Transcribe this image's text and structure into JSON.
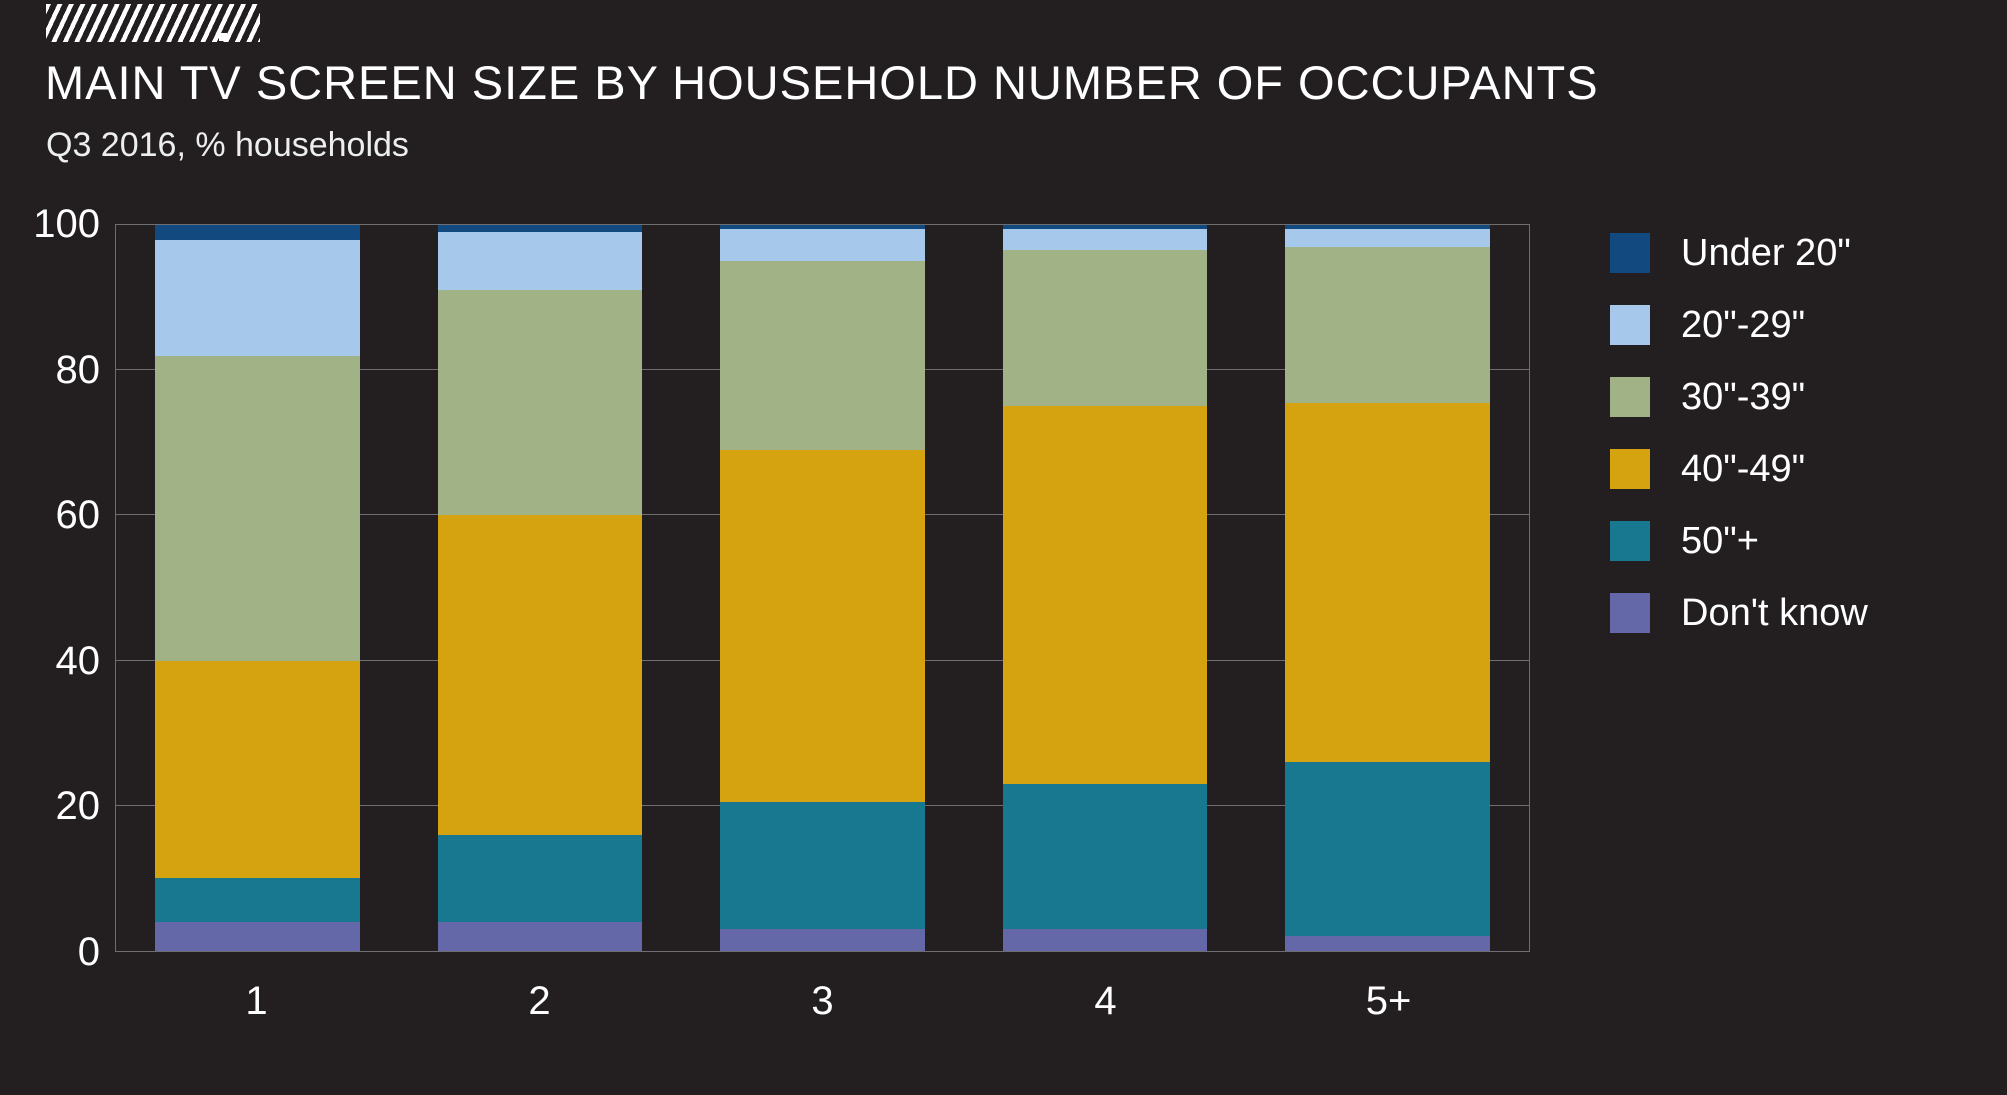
{
  "page": {
    "title": "MAIN TV SCREEN SIZE BY HOUSEHOLD NUMBER OF OCCUPANTS",
    "subtitle": "Q3 2016, % households",
    "background_color": "#231F20",
    "text_color": "#FFFFFF",
    "grid_color": "#6E6E71",
    "logo": "diagonal-stripes-logo"
  },
  "chart_data": {
    "type": "bar",
    "stacked": true,
    "title": "MAIN TV SCREEN SIZE BY HOUSEHOLD NUMBER OF OCCUPANTS",
    "subtitle": "Q3 2016, % households",
    "xlabel": "",
    "ylabel": "% households",
    "ylim": [
      0,
      100
    ],
    "yticks": [
      0,
      20,
      40,
      60,
      80,
      100
    ],
    "grid": true,
    "legend_position": "right",
    "categories": [
      "1",
      "2",
      "3",
      "4",
      "5+"
    ],
    "series": [
      {
        "name": "Under 20\"",
        "color": "#12497E",
        "values": [
          2,
          1,
          0.5,
          0.5,
          0.5
        ]
      },
      {
        "name": "20\"-29\"",
        "color": "#A5C8EB",
        "values": [
          16,
          8,
          4.5,
          3,
          2.5
        ]
      },
      {
        "name": "30\"-39\"",
        "color": "#A2B287",
        "values": [
          42,
          31,
          26,
          21.5,
          21.5
        ]
      },
      {
        "name": "40\"-49\"",
        "color": "#D5A210",
        "values": [
          30,
          44,
          48.5,
          52,
          49.5
        ]
      },
      {
        "name": "50\"+",
        "color": "#17788F",
        "values": [
          6,
          12,
          17.5,
          20,
          24
        ]
      },
      {
        "name": "Don't know",
        "color": "#6568A8",
        "values": [
          4,
          4,
          3,
          3,
          2
        ]
      }
    ],
    "stack_note": "series listed top-to-bottom as stacked in each bar; Don't know sits at the bottom, Under 20\" at the top; every bar totals 100%"
  }
}
